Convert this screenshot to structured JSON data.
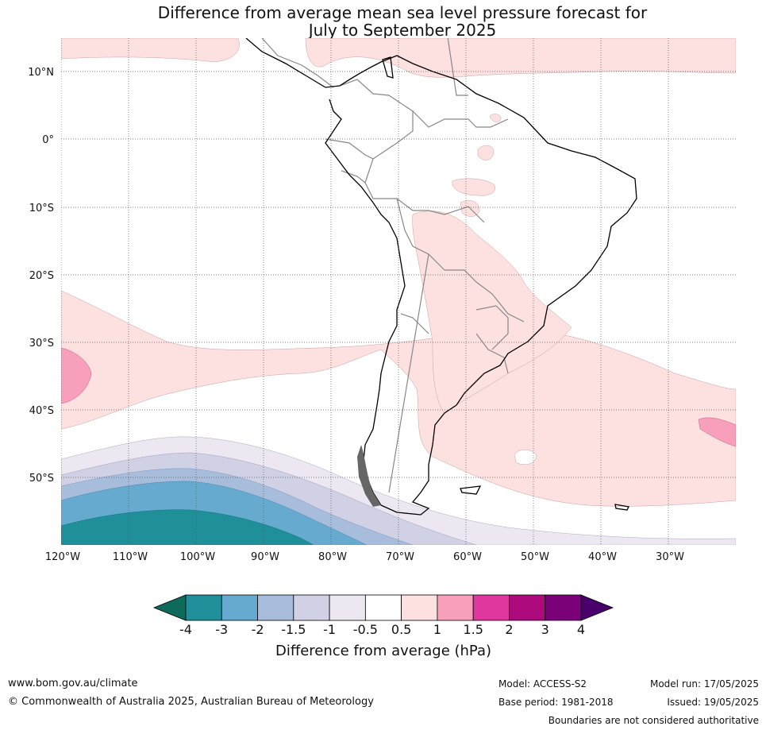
{
  "title": {
    "line1": "Difference from average mean sea level pressure forecast for",
    "line2": "July to September 2025"
  },
  "map": {
    "lat_ticks": [
      "10°N",
      "0°",
      "10°S",
      "20°S",
      "30°S",
      "40°S",
      "50°S"
    ],
    "lon_ticks": [
      "120°W",
      "110°W",
      "100°W",
      "90°W",
      "80°W",
      "70°W",
      "60°W",
      "50°W",
      "40°W",
      "30°W"
    ],
    "extent": {
      "lon": [
        -120,
        -20
      ],
      "lat": [
        -60,
        15
      ]
    }
  },
  "colorbar": {
    "title": "Difference from average (hPa)",
    "labels": [
      "-4",
      "-3",
      "-2",
      "-1.5",
      "-1",
      "-0.5",
      "0.5",
      "1",
      "1.5",
      "2",
      "3",
      "4"
    ],
    "colors": {
      "below_min": "#0e6b5c",
      "bins": [
        "#1f9099",
        "#66aad0",
        "#a7bddb",
        "#d1d1e6",
        "#ece7f1",
        "#ffffff",
        "#fde0e0",
        "#f89fbb",
        "#e0379e",
        "#ad0a7d",
        "#7a0177"
      ],
      "above_max": "#49006a"
    }
  },
  "footer": {
    "website": "www.bom.gov.au/climate",
    "copyright": "© Commonwealth of Australia 2025, Australian Bureau of Meteorology",
    "model": "Model: ACCESS-S2",
    "base_period": "Base period: 1981-2018",
    "model_run": "Model run: 17/05/2025",
    "issued": "Issued: 19/05/2025",
    "disclaimer": "Boundaries are not considered authoritative"
  }
}
